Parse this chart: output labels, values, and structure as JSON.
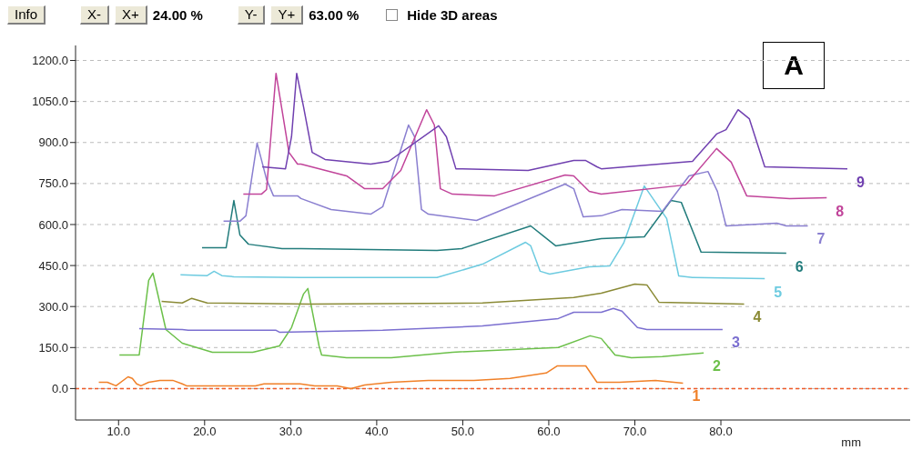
{
  "chart_data": {
    "type": "line",
    "xlabel": "mm",
    "annotations": [
      "Info",
      "X-",
      "X+",
      "24.00 %",
      "Y-",
      "Y+",
      "63.00 %",
      "Hide 3D areas",
      "A"
    ],
    "xlim": [
      5,
      102
    ],
    "ylim": [
      -115,
      1255
    ],
    "xticks": [
      {
        "value": 10,
        "label": "10.0"
      },
      {
        "value": 20,
        "label": "20.0"
      },
      {
        "value": 30,
        "label": "30.0"
      },
      {
        "value": 40,
        "label": "40.0"
      },
      {
        "value": 50,
        "label": "50.0"
      },
      {
        "value": 60,
        "label": "60.0"
      },
      {
        "value": 70,
        "label": "70.0"
      },
      {
        "value": 80,
        "label": "80.0"
      }
    ],
    "yticks": [
      {
        "value": 0,
        "label": "0.0"
      },
      {
        "value": 150,
        "label": "150.0"
      },
      {
        "value": 300,
        "label": "300.0"
      },
      {
        "value": 450,
        "label": "450.0"
      },
      {
        "value": 600,
        "label": "600.0"
      },
      {
        "value": 750,
        "label": "750.0"
      },
      {
        "value": 900,
        "label": "900.0"
      },
      {
        "value": 1050,
        "label": "1050.0"
      },
      {
        "value": 1200,
        "label": "1200.0"
      }
    ],
    "grid": "y",
    "legend": false,
    "marker": "none",
    "line_style": "solid",
    "ref_lines": [
      {
        "axis": "y",
        "value": 0,
        "color": "#f05a28",
        "line_style": "dashed"
      }
    ],
    "series": [
      {
        "name": "1",
        "color": "#f08028",
        "x": [
          7.7,
          8.7,
          9.7,
          11.1,
          11.6,
          12.1,
          12.6,
          13.5,
          14.8,
          16.3,
          17.4,
          17.9,
          25.9,
          26.9,
          31.1,
          32.8,
          35.4,
          37.0,
          38.6,
          41.7,
          46.0,
          51.3,
          55.5,
          59.7,
          61.0,
          64.3,
          65.6,
          68.2,
          72.4,
          75.6
        ],
        "values": [
          23,
          23,
          10,
          43,
          37,
          17,
          10,
          23,
          30,
          30,
          17,
          10,
          10,
          17,
          17,
          10,
          10,
          0,
          13,
          23,
          30,
          30,
          37,
          57,
          83,
          83,
          23,
          23,
          30,
          20
        ]
      },
      {
        "name": "2",
        "color": "#6cc04a",
        "x": [
          10.1,
          12.4,
          13.5,
          14.0,
          15.5,
          17.4,
          20.9,
          25.6,
          28.7,
          30.1,
          31.5,
          32.0,
          33.3,
          33.6,
          36.5,
          41.7,
          48.8,
          61.1,
          64.8,
          66.1,
          67.7,
          69.6,
          73.2,
          78.0
        ],
        "values": [
          123,
          123,
          396,
          422,
          216,
          166,
          133,
          133,
          156,
          223,
          346,
          366,
          156,
          123,
          113,
          113,
          133,
          150,
          193,
          183,
          123,
          113,
          117,
          130
        ]
      },
      {
        "name": "3",
        "color": "#7b6fd0",
        "x": [
          12.4,
          17.4,
          18.1,
          28.3,
          28.7,
          40.7,
          52.3,
          61.1,
          62.9,
          66.1,
          67.5,
          68.5,
          70.3,
          71.4,
          75.3,
          80.2
        ],
        "values": [
          219,
          216,
          213,
          213,
          206,
          213,
          229,
          256,
          279,
          279,
          293,
          283,
          223,
          216,
          216,
          216
        ]
      },
      {
        "name": "4",
        "color": "#8a8a35",
        "x": [
          15.0,
          17.4,
          18.5,
          20.3,
          32.2,
          52.3,
          62.9,
          66.1,
          70.0,
          71.4,
          72.8,
          76.7,
          82.7
        ],
        "values": [
          319,
          313,
          330,
          313,
          309,
          313,
          333,
          349,
          382,
          379,
          316,
          313,
          309
        ]
      },
      {
        "name": "5",
        "color": "#6dcbe0",
        "x": [
          17.2,
          20.3,
          21.1,
          22.0,
          23.4,
          31.2,
          47.0,
          52.3,
          57.3,
          57.9,
          59.0,
          60.1,
          64.7,
          67.1,
          68.7,
          71.1,
          73.7,
          75.1,
          76.7,
          85.1
        ],
        "values": [
          416,
          413,
          429,
          413,
          409,
          406,
          406,
          455,
          535,
          522,
          429,
          419,
          445,
          449,
          532,
          741,
          622,
          412,
          406,
          402
        ]
      },
      {
        "name": "6",
        "color": "#227c7c",
        "x": [
          19.7,
          22.5,
          23.4,
          24.1,
          25.1,
          29.0,
          31.2,
          47.0,
          49.9,
          57.9,
          60.8,
          66.1,
          71.1,
          74.2,
          75.4,
          77.7,
          87.6
        ],
        "values": [
          515,
          515,
          688,
          562,
          528,
          512,
          512,
          505,
          512,
          595,
          522,
          548,
          555,
          688,
          681,
          499,
          495
        ]
      },
      {
        "name": "7",
        "color": "#8a7fd0",
        "x": [
          22.2,
          24.1,
          24.8,
          26.1,
          27.2,
          28.0,
          30.8,
          31.2,
          34.7,
          39.3,
          40.7,
          43.7,
          44.4,
          45.2,
          46.0,
          51.6,
          61.9,
          62.9,
          64.0,
          66.1,
          68.5,
          73.2,
          76.3,
          78.5,
          79.6,
          80.6,
          86.5,
          87.6,
          90.1
        ],
        "values": [
          612,
          612,
          632,
          898,
          765,
          705,
          705,
          695,
          655,
          638,
          665,
          964,
          921,
          655,
          638,
          615,
          748,
          731,
          628,
          632,
          655,
          648,
          778,
          794,
          721,
          595,
          605,
          595,
          595
        ]
      },
      {
        "name": "8",
        "color": "#c1449a",
        "x": [
          24.5,
          26.6,
          27.2,
          28.3,
          29.8,
          30.8,
          31.2,
          36.5,
          38.6,
          40.7,
          42.8,
          45.8,
          46.7,
          47.4,
          48.8,
          53.7,
          61.9,
          62.9,
          64.7,
          66.1,
          75.9,
          79.5,
          81.2,
          83.0,
          88.0,
          92.3
        ],
        "values": [
          711,
          711,
          728,
          1153,
          864,
          821,
          821,
          778,
          731,
          731,
          798,
          1020,
          964,
          731,
          711,
          705,
          781,
          778,
          721,
          711,
          745,
          878,
          828,
          705,
          695,
          698
        ]
      },
      {
        "name": "9",
        "color": "#7040b0",
        "x": [
          26.7,
          29.4,
          30.1,
          30.7,
          31.5,
          32.5,
          34.0,
          39.3,
          41.4,
          47.2,
          48.1,
          49.2,
          57.6,
          62.9,
          64.3,
          65.6,
          66.1,
          76.7,
          79.5,
          80.6,
          82.0,
          83.3,
          85.1,
          94.7
        ],
        "values": [
          811,
          804,
          921,
          1153,
          1030,
          864,
          838,
          821,
          831,
          961,
          921,
          804,
          798,
          834,
          834,
          811,
          804,
          831,
          931,
          947,
          1020,
          987,
          811,
          804
        ]
      }
    ]
  }
}
